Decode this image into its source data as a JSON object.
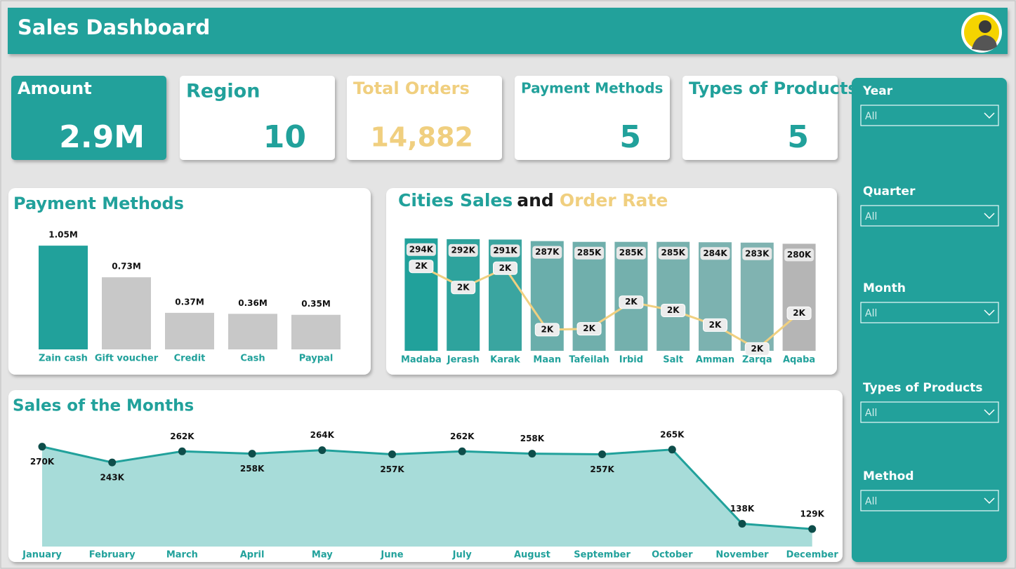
{
  "header": {
    "title": "Sales Dashboard"
  },
  "kpis": [
    {
      "label": "Amount",
      "value": "2.9M"
    },
    {
      "label": "Region",
      "value": "10"
    },
    {
      "label": "Total Orders",
      "value": "14,882"
    },
    {
      "label": "Payment Methods",
      "value": "5"
    },
    {
      "label": "Types of Products",
      "value": "5"
    }
  ],
  "filters": [
    {
      "label": "Year",
      "value": "All"
    },
    {
      "label": "Quarter",
      "value": "All"
    },
    {
      "label": "Month",
      "value": "All"
    },
    {
      "label": "Types of Products",
      "value": "All"
    },
    {
      "label": "Method",
      "value": "All"
    }
  ],
  "chart_data": [
    {
      "type": "bar",
      "title": "Payment Methods",
      "categories": [
        "Zain cash",
        "Gift voucher",
        "Credit",
        "Cash",
        "Paypal"
      ],
      "values": [
        1.05,
        0.73,
        0.37,
        0.36,
        0.35
      ],
      "value_labels": [
        "1.05M",
        "0.73M",
        "0.37M",
        "0.36M",
        "0.35M"
      ],
      "colors": [
        "#21a19b",
        "#c8c8c8",
        "#c8c8c8",
        "#c8c8c8",
        "#c8c8c8"
      ],
      "ylim": [
        0,
        1.2
      ]
    },
    {
      "type": "bar-line",
      "title": [
        "Cities Sales",
        "and",
        "Order Rate"
      ],
      "title_colors": [
        "#21a19b",
        "#1a1a1a",
        "#f0cf7f"
      ],
      "categories": [
        "Madaba",
        "Jerash",
        "Karak",
        "Maan",
        "Tafeilah",
        "Irbid",
        "Salt",
        "Amman",
        "Zarqa",
        "Aqaba"
      ],
      "series": [
        {
          "name": "Sales",
          "values": [
            294,
            292,
            291,
            287,
            285,
            285,
            285,
            284,
            283,
            280
          ],
          "value_labels": [
            "294K",
            "292K",
            "291K",
            "287K",
            "285K",
            "285K",
            "285K",
            "284K",
            "283K",
            "280K"
          ],
          "colors": [
            "#21a19b",
            "#2ea39d",
            "#3aa5a0",
            "#6aaeab",
            "#70afac",
            "#74b0ad",
            "#78b1ae",
            "#7cb2b0",
            "#80b3b1",
            "#b5b5b5"
          ]
        },
        {
          "name": "Order Rate",
          "axis": "y2",
          "color": "#f0d080",
          "values": [
            2.45,
            2.22,
            2.43,
            1.76,
            1.77,
            2.06,
            1.97,
            1.81,
            1.55,
            1.94
          ],
          "value_labels": [
            "2K",
            "2K",
            "2K",
            "2K",
            "2K",
            "2K",
            "2K",
            "2K",
            "2K",
            "2K"
          ]
        }
      ],
      "ylim": [
        0,
        312
      ],
      "y2lim": [
        1.53,
        2.83
      ]
    },
    {
      "type": "area",
      "title": "Sales of the Months",
      "categories": [
        "January",
        "February",
        "March",
        "April",
        "May",
        "June",
        "July",
        "August",
        "September",
        "October",
        "November",
        "December"
      ],
      "values": [
        270,
        243,
        262,
        258,
        264,
        257,
        262,
        258,
        257,
        265,
        138,
        129
      ],
      "value_labels": [
        "270K",
        "243K",
        "262K",
        "258K",
        "264K",
        "257K",
        "262K",
        "258K",
        "257K",
        "265K",
        "138K",
        "129K"
      ],
      "color": "#21a19b",
      "ylim": [
        99,
        302
      ]
    }
  ]
}
